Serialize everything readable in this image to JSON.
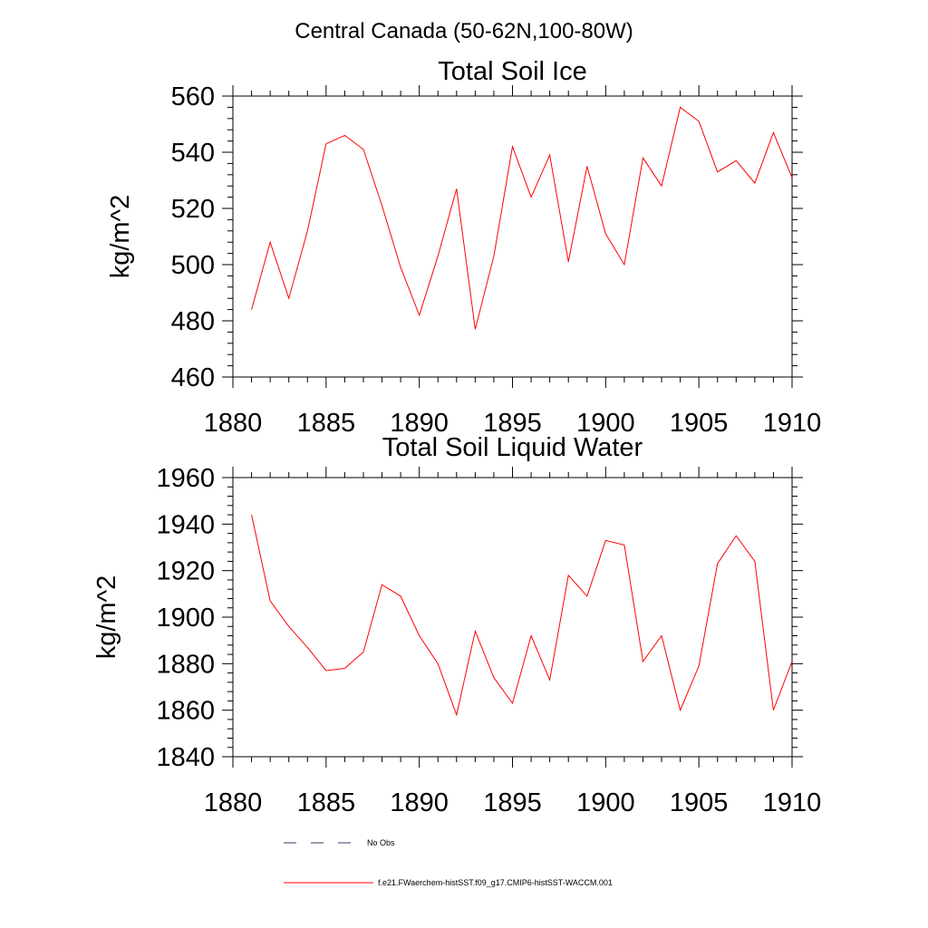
{
  "figure": {
    "title": "Central Canada (50-62N,100-80W)"
  },
  "chart_data": [
    {
      "type": "line",
      "title": "Total Soil Ice",
      "xlabel": "",
      "ylabel": "kg/m^2",
      "xlim": [
        1880,
        1910
      ],
      "ylim": [
        460,
        560
      ],
      "x_ticks": [
        1880,
        1885,
        1890,
        1895,
        1900,
        1905,
        1910
      ],
      "y_ticks": [
        460,
        480,
        500,
        520,
        540,
        560
      ],
      "grid": false,
      "series": [
        {
          "name": "f.e21.FWaerchem-histSST.f09_g17.CMIP6-histSST-WACCM.001",
          "color": "#ff0000",
          "x": [
            1881,
            1882,
            1883,
            1884,
            1885,
            1886,
            1887,
            1888,
            1889,
            1890,
            1891,
            1892,
            1893,
            1894,
            1895,
            1896,
            1897,
            1898,
            1899,
            1900,
            1901,
            1902,
            1903,
            1904,
            1905,
            1906,
            1907,
            1908,
            1909,
            1910
          ],
          "values": [
            484,
            508,
            488,
            512,
            543,
            546,
            541,
            521,
            499,
            482,
            503,
            527,
            477,
            503,
            542,
            524,
            539,
            501,
            535,
            511,
            500,
            538,
            528,
            556,
            551,
            533,
            537,
            529,
            547,
            531
          ]
        }
      ]
    },
    {
      "type": "line",
      "title": "Total Soil Liquid Water",
      "xlabel": "",
      "ylabel": "kg/m^2",
      "xlim": [
        1880,
        1910
      ],
      "ylim": [
        1840,
        1960
      ],
      "x_ticks": [
        1880,
        1885,
        1890,
        1895,
        1900,
        1905,
        1910
      ],
      "y_ticks": [
        1840,
        1860,
        1880,
        1900,
        1920,
        1940,
        1960
      ],
      "grid": false,
      "series": [
        {
          "name": "f.e21.FWaerchem-histSST.f09_g17.CMIP6-histSST-WACCM.001",
          "color": "#ff0000",
          "x": [
            1881,
            1882,
            1883,
            1884,
            1885,
            1886,
            1887,
            1888,
            1889,
            1890,
            1891,
            1892,
            1893,
            1894,
            1895,
            1896,
            1897,
            1898,
            1899,
            1900,
            1901,
            1902,
            1903,
            1904,
            1905,
            1906,
            1907,
            1908,
            1909,
            1910
          ],
          "values": [
            1944,
            1907,
            1896,
            1887,
            1877,
            1878,
            1885,
            1914,
            1909,
            1892,
            1880,
            1858,
            1894,
            1874,
            1863,
            1892,
            1873,
            1918,
            1909,
            1933,
            1931,
            1881,
            1892,
            1860,
            1879,
            1923,
            1935,
            1924,
            1860,
            1881
          ]
        }
      ]
    }
  ],
  "legend": {
    "placement": "bottom",
    "entries": [
      {
        "label": "No Obs",
        "style": "dashed",
        "color": "#3a3a6a"
      },
      {
        "label": "f.e21.FWaerchem-histSST.f09_g17.CMIP6-histSST-WACCM.001",
        "style": "solid",
        "color": "#ff0000"
      }
    ]
  }
}
